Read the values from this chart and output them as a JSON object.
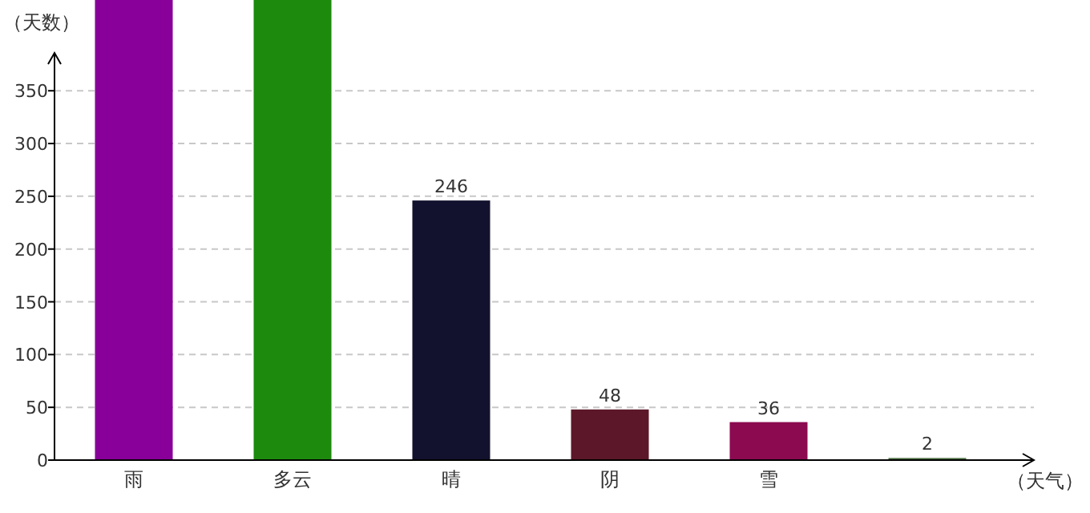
{
  "chart_data": {
    "type": "bar",
    "xlabel": "（天气）",
    "ylabel": "（天数）",
    "categories": [
      "雨",
      "多云",
      "晴",
      "阴",
      "雪",
      null
    ],
    "values": [
      436,
      436,
      246,
      48,
      36,
      2
    ],
    "value_labels": [
      null,
      null,
      "246",
      "48",
      "36",
      "2"
    ],
    "colors": [
      "#880099",
      "#1d8a0e",
      "#12122e",
      "#5c1828",
      "#8b0a50",
      "#4a6e40"
    ],
    "ylim": [
      0,
      436
    ],
    "yticks": [
      0,
      50,
      100,
      150,
      200,
      250,
      300,
      350
    ],
    "grid": "y"
  }
}
